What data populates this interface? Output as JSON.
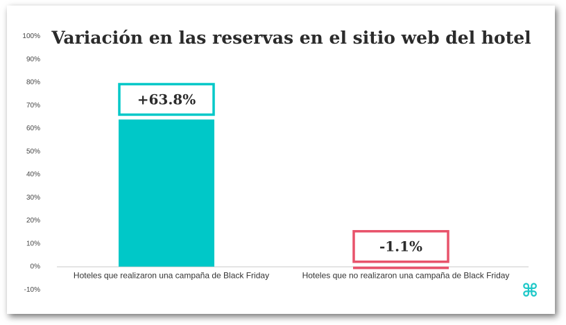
{
  "chart_data": {
    "type": "bar",
    "title": "Variación en las reservas en el sitio web del hotel",
    "categories": [
      "Hoteles que realizaron una campaña de Black Friday",
      "Hoteles que no realizaron una campaña de Black Friday"
    ],
    "values": [
      63.8,
      -1.1
    ],
    "data_labels": [
      "+63.8%",
      "-1.1%"
    ],
    "colors": [
      "#00c8c8",
      "#e8536b"
    ],
    "ylim": [
      -10,
      100
    ],
    "yticks": [
      100,
      90,
      80,
      70,
      60,
      50,
      40,
      30,
      20,
      10,
      0,
      -10
    ],
    "ytick_labels": [
      "100%",
      "90%",
      "80%",
      "70%",
      "60%",
      "50%",
      "40%",
      "30%",
      "20%",
      "10%",
      "0%",
      "-10%"
    ],
    "grid": false,
    "legend": "none"
  },
  "logo": {
    "glyph": "⌘",
    "color": "#1ec8c8"
  }
}
